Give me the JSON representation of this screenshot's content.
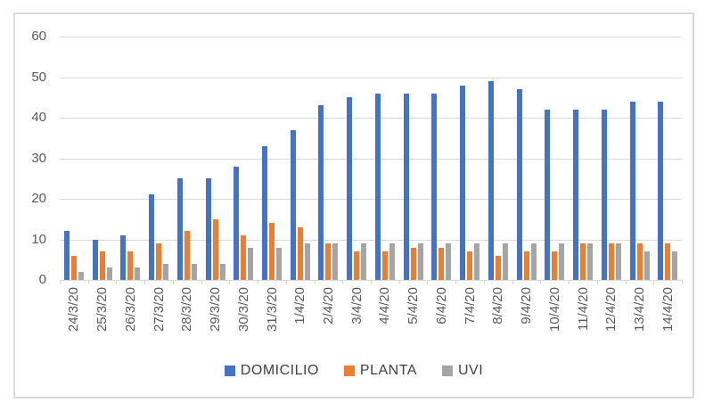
{
  "chart_data": {
    "type": "bar",
    "title": "",
    "categories": [
      "24/3/20",
      "25/3/20",
      "26/3/20",
      "27/3/20",
      "28/3/20",
      "29/3/20",
      "30/3/20",
      "31/3/20",
      "1/4/20",
      "2/4/20",
      "3/4/20",
      "4/4/20",
      "5/4/20",
      "6/4/20",
      "7/4/20",
      "8/4/20",
      "9/4/20",
      "10/4/20",
      "11/4/20",
      "12/4/20",
      "13/4/20",
      "14/4/20"
    ],
    "series": [
      {
        "name": "DOMICILIO",
        "color": "#4472C4",
        "values": [
          12,
          10,
          11,
          21,
          25,
          25,
          28,
          33,
          37,
          43,
          45,
          46,
          46,
          46,
          48,
          49,
          47,
          42,
          42,
          42,
          44,
          44
        ]
      },
      {
        "name": "PLANTA",
        "color": "#ED7D31",
        "values": [
          6,
          7,
          7,
          9,
          12,
          15,
          11,
          14,
          13,
          9,
          7,
          7,
          8,
          8,
          7,
          6,
          7,
          7,
          9,
          9,
          9,
          9
        ]
      },
      {
        "name": "UVI",
        "color": "#A5A5A5",
        "values": [
          2,
          3,
          3,
          4,
          4,
          4,
          8,
          8,
          9,
          9,
          9,
          9,
          9,
          9,
          9,
          9,
          9,
          9,
          9,
          9,
          7,
          7
        ]
      }
    ],
    "xlabel": "",
    "ylabel": "",
    "ylim": [
      0,
      60
    ],
    "yticks": [
      0,
      10,
      20,
      30,
      40,
      50,
      60
    ],
    "grid": "horizontal",
    "legend_position": "bottom",
    "palette": {
      "gridline": "#D9D9D9",
      "axis_text": "#595959",
      "legend_text": "#404040",
      "frame_border": "#D9D9D9",
      "background": "#FFFFFF"
    }
  }
}
